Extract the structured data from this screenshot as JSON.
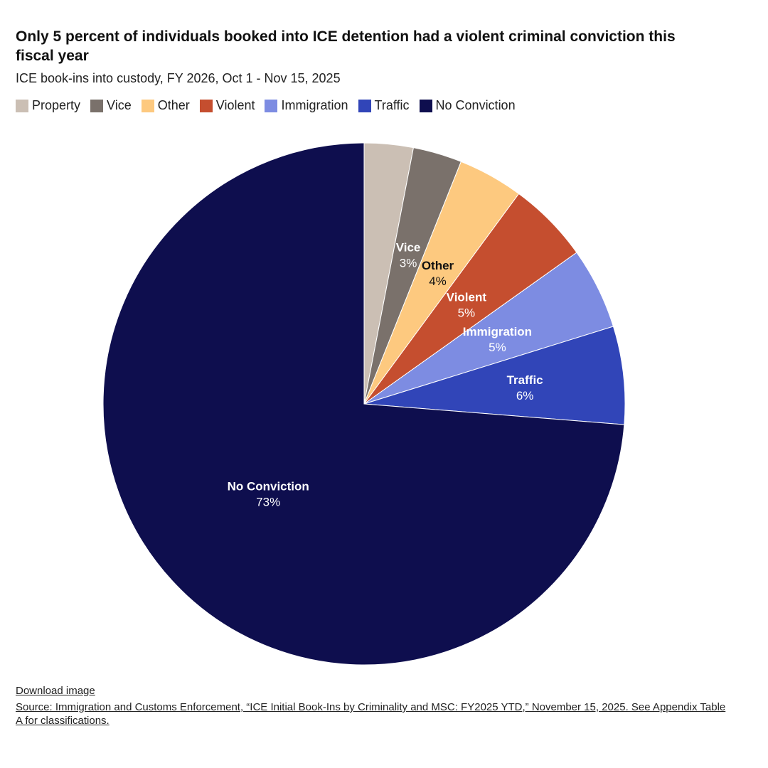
{
  "header": {
    "title": "Only 5 percent of individuals booked into ICE detention had a violent criminal conviction this fiscal year",
    "subtitle": "ICE book-ins into custody, FY 2026, Oct 1 - Nov 15, 2025"
  },
  "footer": {
    "download_label": "Download image",
    "source": "Source: Immigration and Customs Enforcement, “ICE Initial Book-Ins by Criminality and MSC: FY2025 YTD,” November 15, 2025. See Appendix Table A for classifications."
  },
  "chart_data": {
    "type": "pie",
    "title": "Only 5 percent of individuals booked into ICE detention had a violent criminal conviction this fiscal year",
    "subtitle": "ICE book-ins into custody, FY 2026, Oct 1 - Nov 15, 2025",
    "legend_position": "top-left",
    "start": "12 o'clock, clockwise",
    "slices": [
      {
        "name": "Property",
        "value": 3,
        "color": "#cbbfb4",
        "label": "",
        "label_color": "#ffffff"
      },
      {
        "name": "Vice",
        "value": 3,
        "color": "#7a716b",
        "label": "3%",
        "label_color": "#ffffff"
      },
      {
        "name": "Other",
        "value": 4,
        "color": "#fdc97f",
        "label": "4%",
        "label_color": "#111111"
      },
      {
        "name": "Violent",
        "value": 5,
        "color": "#c54e2f",
        "label": "5%",
        "label_color": "#ffffff"
      },
      {
        "name": "Immigration",
        "value": 5,
        "color": "#7d8ce2",
        "label": "5%",
        "label_color": "#ffffff"
      },
      {
        "name": "Traffic",
        "value": 6,
        "color": "#3145b8",
        "label": "6%",
        "label_color": "#ffffff"
      },
      {
        "name": "No Conviction",
        "value": 73,
        "color": "#0e0e4e",
        "label": "73%",
        "label_color": "#ffffff"
      }
    ]
  }
}
